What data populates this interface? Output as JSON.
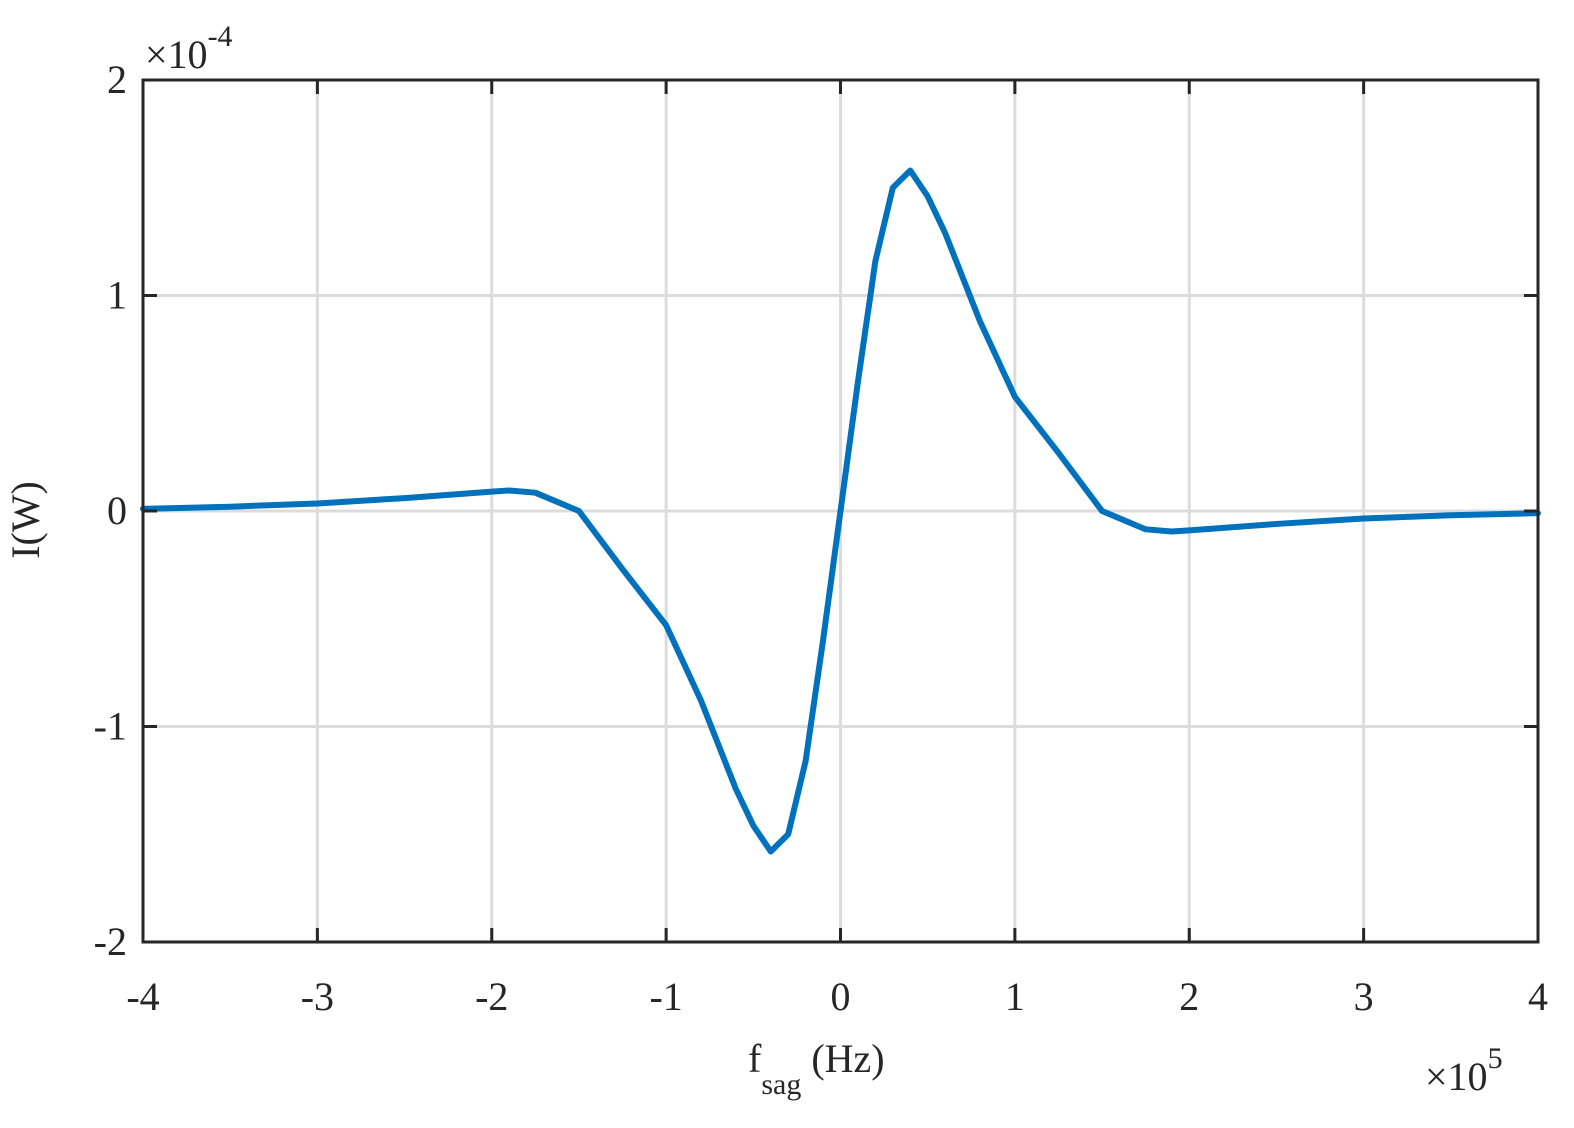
{
  "chart_data": {
    "type": "line",
    "xlabel": {
      "text": "f",
      "subscript": "sag",
      "unit": "(Hz)"
    },
    "ylabel": "I(W)",
    "x_multiplier": {
      "base": "×10",
      "exponent": "5"
    },
    "y_multiplier": {
      "base": "×10",
      "exponent": "-4"
    },
    "x": [
      -4,
      -3.5,
      -3,
      -2.5,
      -2,
      -1.9,
      -1.75,
      -1.5,
      -1.25,
      -1,
      -0.8,
      -0.6,
      -0.5,
      -0.4,
      -0.3,
      -0.2,
      -0.1,
      0,
      0.1,
      0.2,
      0.3,
      0.4,
      0.5,
      0.6,
      0.8,
      1,
      1.25,
      1.5,
      1.75,
      1.9,
      2,
      2.5,
      3,
      3.5,
      4
    ],
    "series": [
      {
        "name": "I",
        "color": "#0072bd",
        "values": [
          0.01,
          0.02,
          0.035,
          0.06,
          0.09,
          0.095,
          0.085,
          0.0,
          -0.27,
          -0.53,
          -0.88,
          -1.29,
          -1.46,
          -1.58,
          -1.5,
          -1.16,
          -0.6,
          0,
          0.6,
          1.16,
          1.5,
          1.58,
          1.46,
          1.29,
          0.88,
          0.53,
          0.27,
          0.0,
          -0.085,
          -0.095,
          -0.09,
          -0.06,
          -0.035,
          -0.02,
          -0.01
        ]
      }
    ],
    "xlim": [
      -4,
      4
    ],
    "ylim": [
      -2,
      2
    ],
    "xticks": [
      -4,
      -3,
      -2,
      -1,
      0,
      1,
      2,
      3,
      4
    ],
    "yticks": [
      -2,
      -1,
      0,
      1,
      2
    ],
    "grid": true
  }
}
